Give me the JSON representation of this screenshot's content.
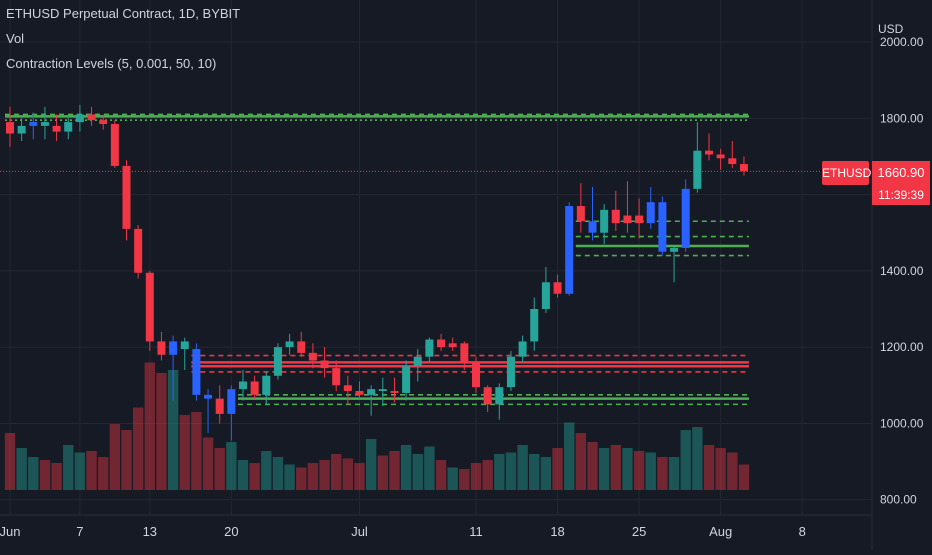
{
  "header": {
    "title": "ETHUSD Perpetual Contract, 1D, BYBIT",
    "vol_label": "Vol",
    "indicator_label": "Contraction Levels (5, 0.001, 50, 10)"
  },
  "price_badge": {
    "symbol": "ETHUSD",
    "price": "1660.90",
    "countdown": "11:39:39"
  },
  "colors": {
    "background": "#161a25",
    "up": "#26a69a",
    "down": "#f23645",
    "contraction": "#2962ff",
    "level_green": "#4caf50",
    "level_red": "#f23645",
    "grid": "#232733",
    "text": "#d1d4dc"
  },
  "chart_data": {
    "type": "candlestick",
    "title": "ETHUSD Perpetual Contract, 1D, BYBIT",
    "currency": "USD",
    "ylim": [
      760,
      2110
    ],
    "y_ticks": [
      "2000.00",
      "1800.00",
      "1600.00",
      "1400.00",
      "1200.00",
      "1000.00",
      "800.00"
    ],
    "y_tick_values": [
      2000,
      1800,
      1600,
      1400,
      1200,
      1000,
      800
    ],
    "x_ticks": [
      {
        "label": "Jun",
        "day": 1
      },
      {
        "label": "7",
        "day": 7
      },
      {
        "label": "13",
        "day": 13
      },
      {
        "label": "20",
        "day": 20
      },
      {
        "label": "Jul",
        "day": 31
      },
      {
        "label": "11",
        "day": 41
      },
      {
        "label": "18",
        "day": 48
      },
      {
        "label": "25",
        "day": 55
      },
      {
        "label": "Aug",
        "day": 62
      },
      {
        "label": "8",
        "day": 69
      }
    ],
    "last_price": 1660.9,
    "candles": [
      {
        "o": 1790,
        "h": 1830,
        "l": 1725,
        "c": 1760,
        "v": 38,
        "k": "d"
      },
      {
        "o": 1760,
        "h": 1800,
        "l": 1740,
        "c": 1780,
        "v": 28,
        "k": "u"
      },
      {
        "o": 1780,
        "h": 1815,
        "l": 1745,
        "c": 1790,
        "v": 22,
        "k": "c"
      },
      {
        "o": 1790,
        "h": 1830,
        "l": 1745,
        "c": 1780,
        "v": 20,
        "k": "u"
      },
      {
        "o": 1780,
        "h": 1810,
        "l": 1740,
        "c": 1765,
        "v": 18,
        "k": "d"
      },
      {
        "o": 1765,
        "h": 1800,
        "l": 1745,
        "c": 1790,
        "v": 30,
        "k": "u"
      },
      {
        "o": 1790,
        "h": 1835,
        "l": 1765,
        "c": 1810,
        "v": 25,
        "k": "u"
      },
      {
        "o": 1810,
        "h": 1830,
        "l": 1780,
        "c": 1795,
        "v": 26,
        "k": "d"
      },
      {
        "o": 1795,
        "h": 1810,
        "l": 1770,
        "c": 1785,
        "v": 22,
        "k": "d"
      },
      {
        "o": 1785,
        "h": 1795,
        "l": 1670,
        "c": 1675,
        "v": 44,
        "k": "d"
      },
      {
        "o": 1675,
        "h": 1690,
        "l": 1480,
        "c": 1510,
        "v": 40,
        "k": "d"
      },
      {
        "o": 1510,
        "h": 1520,
        "l": 1380,
        "c": 1395,
        "v": 55,
        "k": "d"
      },
      {
        "o": 1395,
        "h": 1400,
        "l": 1190,
        "c": 1215,
        "v": 85,
        "k": "d"
      },
      {
        "o": 1215,
        "h": 1240,
        "l": 1165,
        "c": 1180,
        "v": 78,
        "k": "d"
      },
      {
        "o": 1180,
        "h": 1230,
        "l": 1060,
        "c": 1215,
        "v": 80,
        "k": "c"
      },
      {
        "o": 1215,
        "h": 1225,
        "l": 1140,
        "c": 1195,
        "v": 50,
        "k": "u"
      },
      {
        "o": 1195,
        "h": 1210,
        "l": 1060,
        "c": 1075,
        "v": 52,
        "k": "c"
      },
      {
        "o": 1075,
        "h": 1090,
        "l": 975,
        "c": 1065,
        "v": 35,
        "k": "c"
      },
      {
        "o": 1065,
        "h": 1100,
        "l": 1000,
        "c": 1025,
        "v": 28,
        "k": "d"
      },
      {
        "o": 1025,
        "h": 1100,
        "l": 955,
        "c": 1090,
        "v": 32,
        "k": "c"
      },
      {
        "o": 1090,
        "h": 1140,
        "l": 1060,
        "c": 1110,
        "v": 20,
        "k": "u"
      },
      {
        "o": 1110,
        "h": 1125,
        "l": 1065,
        "c": 1075,
        "v": 18,
        "k": "d"
      },
      {
        "o": 1075,
        "h": 1135,
        "l": 1050,
        "c": 1125,
        "v": 26,
        "k": "u"
      },
      {
        "o": 1125,
        "h": 1210,
        "l": 1115,
        "c": 1200,
        "v": 22,
        "k": "u"
      },
      {
        "o": 1200,
        "h": 1235,
        "l": 1180,
        "c": 1215,
        "v": 17,
        "k": "u"
      },
      {
        "o": 1215,
        "h": 1240,
        "l": 1175,
        "c": 1185,
        "v": 15,
        "k": "d"
      },
      {
        "o": 1185,
        "h": 1210,
        "l": 1145,
        "c": 1165,
        "v": 18,
        "k": "d"
      },
      {
        "o": 1165,
        "h": 1200,
        "l": 1120,
        "c": 1145,
        "v": 20,
        "k": "d"
      },
      {
        "o": 1145,
        "h": 1165,
        "l": 1085,
        "c": 1100,
        "v": 24,
        "k": "d"
      },
      {
        "o": 1100,
        "h": 1125,
        "l": 1050,
        "c": 1085,
        "v": 21,
        "k": "d"
      },
      {
        "o": 1085,
        "h": 1110,
        "l": 1065,
        "c": 1075,
        "v": 18,
        "k": "d"
      },
      {
        "o": 1075,
        "h": 1100,
        "l": 1020,
        "c": 1090,
        "v": 34,
        "k": "u"
      },
      {
        "o": 1090,
        "h": 1120,
        "l": 1045,
        "c": 1085,
        "v": 23,
        "k": "u"
      },
      {
        "o": 1085,
        "h": 1120,
        "l": 1055,
        "c": 1080,
        "v": 26,
        "k": "d"
      },
      {
        "o": 1080,
        "h": 1165,
        "l": 1060,
        "c": 1150,
        "v": 30,
        "k": "u"
      },
      {
        "o": 1150,
        "h": 1195,
        "l": 1110,
        "c": 1175,
        "v": 24,
        "k": "u"
      },
      {
        "o": 1175,
        "h": 1225,
        "l": 1160,
        "c": 1220,
        "v": 29,
        "k": "u"
      },
      {
        "o": 1220,
        "h": 1235,
        "l": 1190,
        "c": 1200,
        "v": 20,
        "k": "d"
      },
      {
        "o": 1200,
        "h": 1225,
        "l": 1190,
        "c": 1210,
        "v": 15,
        "k": "d"
      },
      {
        "o": 1210,
        "h": 1215,
        "l": 1140,
        "c": 1160,
        "v": 14,
        "k": "d"
      },
      {
        "o": 1160,
        "h": 1175,
        "l": 1080,
        "c": 1095,
        "v": 18,
        "k": "d"
      },
      {
        "o": 1095,
        "h": 1100,
        "l": 1030,
        "c": 1050,
        "v": 20,
        "k": "d"
      },
      {
        "o": 1050,
        "h": 1105,
        "l": 1010,
        "c": 1095,
        "v": 24,
        "k": "u"
      },
      {
        "o": 1095,
        "h": 1190,
        "l": 1085,
        "c": 1175,
        "v": 25,
        "k": "u"
      },
      {
        "o": 1175,
        "h": 1230,
        "l": 1160,
        "c": 1215,
        "v": 30,
        "k": "u"
      },
      {
        "o": 1215,
        "h": 1330,
        "l": 1190,
        "c": 1300,
        "v": 24,
        "k": "u"
      },
      {
        "o": 1300,
        "h": 1410,
        "l": 1290,
        "c": 1370,
        "v": 22,
        "k": "u"
      },
      {
        "o": 1370,
        "h": 1390,
        "l": 1330,
        "c": 1340,
        "v": 28,
        "k": "d"
      },
      {
        "o": 1340,
        "h": 1580,
        "l": 1335,
        "c": 1570,
        "v": 45,
        "k": "c"
      },
      {
        "o": 1570,
        "h": 1630,
        "l": 1500,
        "c": 1530,
        "v": 38,
        "k": "d"
      },
      {
        "o": 1530,
        "h": 1620,
        "l": 1480,
        "c": 1500,
        "v": 32,
        "k": "c"
      },
      {
        "o": 1500,
        "h": 1575,
        "l": 1470,
        "c": 1560,
        "v": 28,
        "k": "u"
      },
      {
        "o": 1560,
        "h": 1610,
        "l": 1505,
        "c": 1525,
        "v": 30,
        "k": "d"
      },
      {
        "o": 1525,
        "h": 1635,
        "l": 1500,
        "c": 1545,
        "v": 28,
        "k": "d"
      },
      {
        "o": 1545,
        "h": 1590,
        "l": 1485,
        "c": 1525,
        "v": 26,
        "k": "d"
      },
      {
        "o": 1525,
        "h": 1620,
        "l": 1510,
        "c": 1580,
        "v": 25,
        "k": "c"
      },
      {
        "o": 1580,
        "h": 1595,
        "l": 1440,
        "c": 1450,
        "v": 22,
        "k": "c"
      },
      {
        "o": 1450,
        "h": 1465,
        "l": 1370,
        "c": 1460,
        "v": 22,
        "k": "u"
      },
      {
        "o": 1460,
        "h": 1640,
        "l": 1450,
        "c": 1615,
        "v": 40,
        "k": "c"
      },
      {
        "o": 1615,
        "h": 1790,
        "l": 1605,
        "c": 1715,
        "v": 42,
        "k": "u"
      },
      {
        "o": 1715,
        "h": 1760,
        "l": 1690,
        "c": 1705,
        "v": 30,
        "k": "d"
      },
      {
        "o": 1705,
        "h": 1720,
        "l": 1665,
        "c": 1695,
        "v": 28,
        "k": "d"
      },
      {
        "o": 1695,
        "h": 1740,
        "l": 1670,
        "c": 1680,
        "v": 25,
        "k": "d"
      },
      {
        "o": 1680,
        "h": 1700,
        "l": 1650,
        "c": 1661,
        "v": 17,
        "k": "d"
      }
    ],
    "levels": [
      {
        "style": "solid",
        "color": "green",
        "value": 1805,
        "from": 0,
        "to": 63
      },
      {
        "style": "dotted",
        "color": "green",
        "value": 1795,
        "from": 0,
        "to": 63
      },
      {
        "style": "dashed",
        "color": "green",
        "value": 1810,
        "from": 0,
        "to": 63
      },
      {
        "style": "dashed",
        "color": "red",
        "value": 1178,
        "from": 16,
        "to": 63
      },
      {
        "style": "solid",
        "color": "red",
        "value": 1160,
        "from": 16,
        "to": 63
      },
      {
        "style": "solid",
        "color": "red",
        "value": 1150,
        "from": 16,
        "to": 63
      },
      {
        "style": "dashed",
        "color": "red",
        "value": 1135,
        "from": 16,
        "to": 63
      },
      {
        "style": "dashed",
        "color": "green",
        "value": 1075,
        "from": 20,
        "to": 63
      },
      {
        "style": "solid",
        "color": "green",
        "value": 1065,
        "from": 20,
        "to": 63
      },
      {
        "style": "dashed",
        "color": "green",
        "value": 1050,
        "from": 20,
        "to": 63
      },
      {
        "style": "dashed",
        "color": "green",
        "value": 1530,
        "from": 49,
        "to": 63
      },
      {
        "style": "dashed",
        "color": "green",
        "value": 1490,
        "from": 49,
        "to": 63
      },
      {
        "style": "solid",
        "color": "green",
        "value": 1465,
        "from": 49,
        "to": 63
      },
      {
        "style": "dashed",
        "color": "green",
        "value": 1440,
        "from": 49,
        "to": 63
      }
    ]
  }
}
